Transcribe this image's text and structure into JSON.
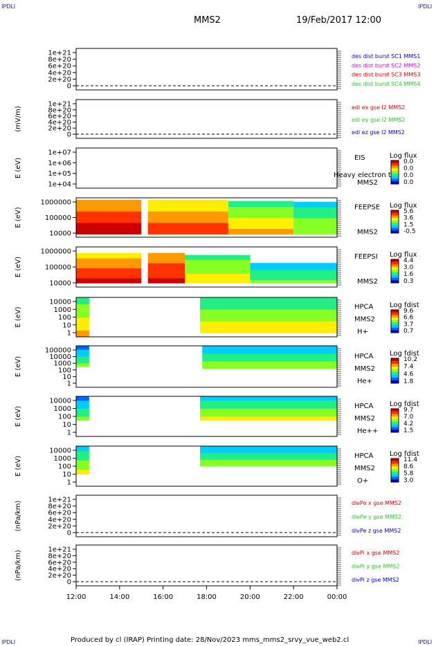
{
  "corners": {
    "top_left": "IPDLI",
    "top_right": "IPDLI",
    "bottom_left": "IPDLI",
    "bottom_right": "IPDLI"
  },
  "header": {
    "spacecraft": "MMS2",
    "date": "19/Feb/2017 12:00"
  },
  "footer": {
    "text": "Produced by cl (IRAP)   Printing date: 28/Nov/2023   mms_mms2_srvy_vue_web2.cl"
  },
  "colors": {
    "red": "#dd0000",
    "magenta": "#dd00dd",
    "green": "#22cc22",
    "blue": "#0000cc"
  },
  "chart_data": {
    "type": "heatmap",
    "x_ticks": [
      "12:00",
      "14:00",
      "16:00",
      "18:00",
      "20:00",
      "22:00",
      "00:00"
    ],
    "x_range_hours": [
      12,
      24
    ],
    "panels": [
      {
        "kind": "line",
        "ylabel": "",
        "ticks": [
          "1e+21",
          "8e+20",
          "6e+20",
          "4e+20",
          "2e+20",
          "0"
        ],
        "legend": [
          {
            "text": "des dist burst SC1 MMS1",
            "color": "blue"
          },
          {
            "text": "des dist burst SC2 MMS2",
            "color": "magenta"
          },
          {
            "text": "des dist burst SC3 MMS3",
            "color": "red"
          },
          {
            "text": "des dist burst SC4 MMS4",
            "color": "green"
          }
        ]
      },
      {
        "kind": "line",
        "ylabel": "(mV/m)",
        "ticks": [
          "1e+21",
          "8e+20",
          "6e+20",
          "4e+20",
          "2e+20",
          "0"
        ],
        "legend": [
          {
            "text": "edi ex gse l2 MMS2",
            "color": "red"
          },
          {
            "text": "edi ey gse l2 MMS2",
            "color": "green"
          },
          {
            "text": "edi ez gse l2 MMS2",
            "color": "blue"
          }
        ]
      },
      {
        "kind": "spec",
        "ylabel": "E (eV)",
        "ticks": [
          "1e+07",
          "1e+06",
          "1e+05",
          "1e+04"
        ],
        "label": [
          "EIS",
          "",
          "MMS2"
        ],
        "overlay": "Heavy electron to",
        "cbar_title": "Log flux",
        "cbar": [
          "0.0",
          "0.0",
          "0.0",
          "0.0"
        ],
        "data": []
      },
      {
        "kind": "spec",
        "ylabel": "E (eV)",
        "ticks": [
          "1000000",
          "100000",
          "10000"
        ],
        "label": [
          "FEEPSE",
          "",
          "MMS2"
        ],
        "cbar_title": "Log flux",
        "cbar": [
          "5.6",
          "3.6",
          "1.5",
          "-0.5"
        ],
        "data": [
          {
            "t0": 12.0,
            "t1": 15.0,
            "lo": 0.08,
            "hi": 0.95,
            "v": 0.85
          },
          {
            "t0": 15.3,
            "t1": 19.0,
            "lo": 0.08,
            "hi": 0.95,
            "v": 0.72
          },
          {
            "t0": 19.0,
            "t1": 22.0,
            "lo": 0.08,
            "hi": 0.92,
            "v": 0.55
          },
          {
            "t0": 22.0,
            "t1": 24.0,
            "lo": 0.08,
            "hi": 0.9,
            "v": 0.38
          }
        ]
      },
      {
        "kind": "spec",
        "ylabel": "E (eV)",
        "ticks": [
          "1000000",
          "100000",
          "10000"
        ],
        "label": [
          "FEEPSI",
          "",
          "MMS2"
        ],
        "cbar_title": "Log flux",
        "cbar": [
          "4.4",
          "3.0",
          "1.6",
          "0.3"
        ],
        "data": [
          {
            "t0": 12.0,
            "t1": 15.0,
            "lo": 0.1,
            "hi": 0.85,
            "v": 0.78
          },
          {
            "t0": 15.3,
            "t1": 17.0,
            "lo": 0.1,
            "hi": 0.85,
            "v": 0.82
          },
          {
            "t0": 17.0,
            "t1": 20.0,
            "lo": 0.1,
            "hi": 0.8,
            "v": 0.5
          },
          {
            "t0": 20.0,
            "t1": 24.0,
            "lo": 0.1,
            "hi": 0.6,
            "v": 0.32
          }
        ]
      },
      {
        "kind": "spec",
        "ylabel": "E (eV)",
        "ticks": [
          "10000",
          "1000",
          "100",
          "10",
          "1"
        ],
        "label": [
          "HPCA",
          "MMS2",
          "H+"
        ],
        "cbar_title": "Log fdist",
        "cbar": [
          "9.6",
          "6.6",
          "3.7",
          "0.7"
        ],
        "data": [
          {
            "t0": 12.0,
            "t1": 12.6,
            "lo": 0.0,
            "hi": 1.0,
            "v": 0.55
          },
          {
            "t0": 17.7,
            "t1": 24.0,
            "lo": 0.1,
            "hi": 1.0,
            "v": 0.45
          }
        ]
      },
      {
        "kind": "spec",
        "ylabel": "E (eV)",
        "ticks": [
          "100000",
          "10000",
          "1000",
          "100",
          "10",
          "1"
        ],
        "label": [
          "HPCA",
          "MMS2",
          "He+"
        ],
        "cbar_title": "Log fdist",
        "cbar": [
          "10.2",
          "7.4",
          "4.6",
          "1.8"
        ],
        "data": [
          {
            "t0": 12.0,
            "t1": 12.6,
            "lo": 0.5,
            "hi": 1.0,
            "v": 0.3
          },
          {
            "t0": 17.8,
            "t1": 24.0,
            "lo": 0.45,
            "hi": 1.0,
            "v": 0.35
          }
        ]
      },
      {
        "kind": "spec",
        "ylabel": "E (eV)",
        "ticks": [
          "10000",
          "1000",
          "100",
          "10",
          "1"
        ],
        "label": [
          "HPCA",
          "MMS2",
          "He++"
        ],
        "cbar_title": "Log fdist",
        "cbar": [
          "9.7",
          "7.0",
          "4.2",
          "1.5"
        ],
        "data": [
          {
            "t0": 12.0,
            "t1": 12.6,
            "lo": 0.4,
            "hi": 1.0,
            "v": 0.3
          },
          {
            "t0": 17.7,
            "t1": 24.0,
            "lo": 0.4,
            "hi": 1.0,
            "v": 0.4
          }
        ]
      },
      {
        "kind": "spec",
        "ylabel": "E (eV)",
        "ticks": [
          "10000",
          "1000",
          "100",
          "10",
          "1"
        ],
        "label": [
          "HPCA",
          "MMS2",
          "O+"
        ],
        "cbar_title": "Log fdist",
        "cbar": [
          "11.4",
          "8.6",
          "5.8",
          "3.0"
        ],
        "data": [
          {
            "t0": 12.0,
            "t1": 12.6,
            "lo": 0.3,
            "hi": 1.0,
            "v": 0.4
          },
          {
            "t0": 17.7,
            "t1": 24.0,
            "lo": 0.5,
            "hi": 1.0,
            "v": 0.35
          }
        ]
      },
      {
        "kind": "line",
        "ylabel": "(nPa/km)",
        "ticks": [
          "1e+21",
          "8e+20",
          "6e+20",
          "4e+20",
          "2e+20",
          "0"
        ],
        "legend": [
          {
            "text": "divPe x gse MMS2",
            "color": "red"
          },
          {
            "text": "divPe y gse MMS2",
            "color": "green"
          },
          {
            "text": "divPe z gse MMS2",
            "color": "blue"
          }
        ]
      },
      {
        "kind": "line",
        "ylabel": "(nPa/km)",
        "ticks": [
          "1e+21",
          "8e+20",
          "6e+20",
          "4e+20",
          "2e+20",
          "0"
        ],
        "legend": [
          {
            "text": "divPi x gse MMS2",
            "color": "red"
          },
          {
            "text": "divPi y gse MMS2",
            "color": "green"
          },
          {
            "text": "divPi z gse MMS2",
            "color": "blue"
          }
        ]
      }
    ]
  }
}
